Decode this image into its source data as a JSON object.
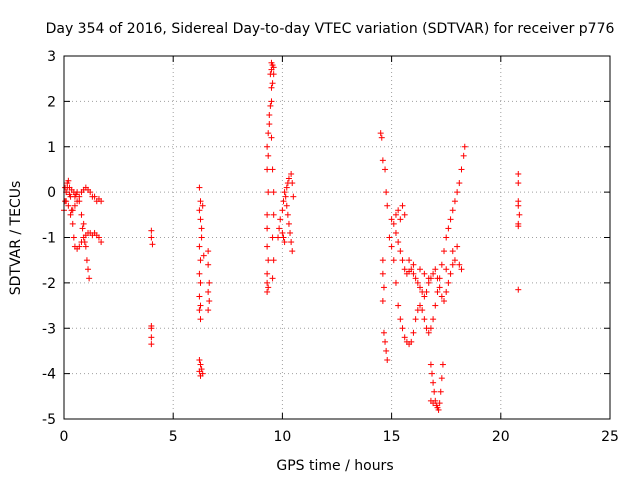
{
  "chart_data": {
    "type": "scatter",
    "title": "Day 354 of 2016, Sidereal Day-to-day VTEC variation (SDTVAR) for receiver p776",
    "xlabel": "GPS time / hours",
    "ylabel": "SDTVAR / TECUs",
    "xlim": [
      0,
      25
    ],
    "ylim": [
      -5,
      3
    ],
    "xticks": [
      0,
      5,
      10,
      15,
      20,
      25
    ],
    "yticks": [
      -5,
      -4,
      -3,
      -2,
      -1,
      0,
      1,
      2,
      3
    ],
    "xtick_labels": [
      "0",
      "5",
      "10",
      "15",
      "20",
      "25"
    ],
    "ytick_labels": [
      "-5",
      "-4",
      "-3",
      "-2",
      "-1",
      "0",
      "1",
      "2",
      "3"
    ],
    "grid": true,
    "marker": "+",
    "color": "#ff0000",
    "series": [
      {
        "name": "SDTVAR",
        "points": [
          [
            0.0,
            -0.4
          ],
          [
            0.05,
            -0.2
          ],
          [
            0.1,
            0.0
          ],
          [
            0.15,
            0.2
          ],
          [
            0.2,
            0.25
          ],
          [
            0.25,
            0.1
          ],
          [
            0.3,
            -0.1
          ],
          [
            0.35,
            -0.4
          ],
          [
            0.4,
            -0.7
          ],
          [
            0.45,
            -1.0
          ],
          [
            0.5,
            -1.2
          ],
          [
            0.6,
            -1.25
          ],
          [
            0.7,
            -1.2
          ],
          [
            0.8,
            -1.1
          ],
          [
            0.9,
            -1.0
          ],
          [
            1.0,
            -0.95
          ],
          [
            1.1,
            -0.9
          ],
          [
            1.2,
            -0.9
          ],
          [
            1.3,
            -0.95
          ],
          [
            1.4,
            -0.9
          ],
          [
            1.5,
            -0.95
          ],
          [
            1.6,
            -1.0
          ],
          [
            1.7,
            -1.1
          ],
          [
            0.1,
            -0.2
          ],
          [
            0.2,
            -0.3
          ],
          [
            0.3,
            -0.5
          ],
          [
            0.4,
            -0.4
          ],
          [
            0.5,
            -0.3
          ],
          [
            0.6,
            -0.2
          ],
          [
            0.7,
            -0.1
          ],
          [
            0.8,
            0.0
          ],
          [
            0.9,
            0.05
          ],
          [
            1.0,
            0.1
          ],
          [
            1.1,
            0.05
          ],
          [
            1.2,
            0.0
          ],
          [
            1.3,
            -0.1
          ],
          [
            1.4,
            -0.1
          ],
          [
            1.5,
            -0.2
          ],
          [
            1.6,
            -0.15
          ],
          [
            1.7,
            -0.2
          ],
          [
            0.5,
            -0.1
          ],
          [
            0.6,
            0.0
          ],
          [
            0.7,
            -0.2
          ],
          [
            0.8,
            -0.5
          ],
          [
            0.9,
            -0.7
          ],
          [
            1.0,
            -1.2
          ],
          [
            1.05,
            -1.5
          ],
          [
            1.1,
            -1.7
          ],
          [
            1.15,
            -1.9
          ],
          [
            0.85,
            -0.8
          ],
          [
            0.95,
            -1.1
          ],
          [
            0.05,
            0.1
          ],
          [
            0.15,
            0.1
          ],
          [
            0.25,
            -0.05
          ],
          [
            0.35,
            0.05
          ],
          [
            0.45,
            0.0
          ],
          [
            0.55,
            -0.05
          ],
          [
            4.0,
            -0.85
          ],
          [
            4.0,
            -1.0
          ],
          [
            4.05,
            -1.15
          ],
          [
            4.0,
            -2.95
          ],
          [
            4.0,
            -3.0
          ],
          [
            4.0,
            -3.2
          ],
          [
            4.0,
            -3.35
          ],
          [
            6.2,
            0.1
          ],
          [
            6.25,
            -0.2
          ],
          [
            6.2,
            -0.4
          ],
          [
            6.25,
            -0.6
          ],
          [
            6.3,
            -0.8
          ],
          [
            6.2,
            -1.2
          ],
          [
            6.25,
            -1.5
          ],
          [
            6.2,
            -1.8
          ],
          [
            6.25,
            -2.0
          ],
          [
            6.2,
            -2.3
          ],
          [
            6.25,
            -2.5
          ],
          [
            6.2,
            -2.6
          ],
          [
            6.25,
            -2.8
          ],
          [
            6.3,
            -1.0
          ],
          [
            6.35,
            -0.3
          ],
          [
            6.4,
            -1.4
          ],
          [
            6.2,
            -3.7
          ],
          [
            6.25,
            -3.8
          ],
          [
            6.3,
            -3.9
          ],
          [
            6.35,
            -4.0
          ],
          [
            6.2,
            -3.95
          ],
          [
            6.25,
            -4.05
          ],
          [
            6.6,
            -1.3
          ],
          [
            6.6,
            -1.6
          ],
          [
            6.65,
            -2.0
          ],
          [
            6.6,
            -2.2
          ],
          [
            6.65,
            -2.4
          ],
          [
            6.6,
            -2.6
          ],
          [
            9.3,
            -0.8
          ],
          [
            9.3,
            -1.2
          ],
          [
            9.3,
            -1.8
          ],
          [
            9.3,
            -2.0
          ],
          [
            9.35,
            -2.1
          ],
          [
            9.3,
            -2.2
          ],
          [
            9.35,
            -1.5
          ],
          [
            9.3,
            -0.5
          ],
          [
            9.35,
            0.0
          ],
          [
            9.3,
            0.5
          ],
          [
            9.35,
            0.8
          ],
          [
            9.3,
            1.0
          ],
          [
            9.35,
            1.3
          ],
          [
            9.4,
            1.5
          ],
          [
            9.4,
            1.7
          ],
          [
            9.45,
            1.9
          ],
          [
            9.5,
            2.0
          ],
          [
            9.5,
            2.3
          ],
          [
            9.45,
            2.6
          ],
          [
            9.5,
            2.7
          ],
          [
            9.55,
            2.8
          ],
          [
            9.5,
            2.85
          ],
          [
            9.6,
            2.75
          ],
          [
            9.6,
            2.6
          ],
          [
            9.55,
            2.4
          ],
          [
            9.5,
            1.2
          ],
          [
            9.55,
            0.5
          ],
          [
            9.6,
            0.0
          ],
          [
            9.6,
            -0.5
          ],
          [
            9.55,
            -1.0
          ],
          [
            9.6,
            -1.5
          ],
          [
            9.55,
            -1.9
          ],
          [
            9.8,
            -1.0
          ],
          [
            9.85,
            -0.8
          ],
          [
            9.9,
            -0.6
          ],
          [
            10.0,
            -0.4
          ],
          [
            10.05,
            -0.2
          ],
          [
            10.1,
            0.0
          ],
          [
            10.15,
            -0.1
          ],
          [
            10.2,
            -0.3
          ],
          [
            10.25,
            -0.5
          ],
          [
            10.3,
            -0.7
          ],
          [
            10.35,
            -0.9
          ],
          [
            10.4,
            -1.1
          ],
          [
            10.45,
            -1.3
          ],
          [
            10.0,
            -0.9
          ],
          [
            10.05,
            -1.0
          ],
          [
            10.1,
            -1.1
          ],
          [
            10.2,
            0.1
          ],
          [
            10.25,
            0.2
          ],
          [
            10.3,
            0.3
          ],
          [
            10.4,
            0.4
          ],
          [
            10.45,
            0.2
          ],
          [
            10.5,
            -0.1
          ],
          [
            14.5,
            1.3
          ],
          [
            14.55,
            1.2
          ],
          [
            14.6,
            0.7
          ],
          [
            14.7,
            0.5
          ],
          [
            14.75,
            0.0
          ],
          [
            14.8,
            -0.3
          ],
          [
            14.6,
            -1.5
          ],
          [
            14.6,
            -1.8
          ],
          [
            14.65,
            -2.1
          ],
          [
            14.6,
            -2.4
          ],
          [
            14.65,
            -3.1
          ],
          [
            14.7,
            -3.3
          ],
          [
            14.75,
            -3.5
          ],
          [
            14.8,
            -3.7
          ],
          [
            14.9,
            -1.0
          ],
          [
            15.0,
            -1.2
          ],
          [
            15.1,
            -1.5
          ],
          [
            15.2,
            -2.0
          ],
          [
            15.3,
            -2.5
          ],
          [
            15.4,
            -2.8
          ],
          [
            15.5,
            -3.0
          ],
          [
            15.6,
            -3.2
          ],
          [
            15.7,
            -3.3
          ],
          [
            15.8,
            -3.35
          ],
          [
            15.9,
            -3.3
          ],
          [
            16.0,
            -3.1
          ],
          [
            16.1,
            -2.8
          ],
          [
            16.2,
            -2.6
          ],
          [
            16.3,
            -2.5
          ],
          [
            16.4,
            -2.6
          ],
          [
            16.5,
            -2.8
          ],
          [
            16.6,
            -3.0
          ],
          [
            16.7,
            -3.1
          ],
          [
            16.8,
            -3.0
          ],
          [
            16.9,
            -2.8
          ],
          [
            17.0,
            -2.5
          ],
          [
            17.1,
            -2.2
          ],
          [
            17.2,
            -1.9
          ],
          [
            17.3,
            -1.6
          ],
          [
            17.4,
            -1.3
          ],
          [
            17.5,
            -1.0
          ],
          [
            17.6,
            -0.8
          ],
          [
            17.7,
            -0.6
          ],
          [
            17.8,
            -0.4
          ],
          [
            17.9,
            -0.2
          ],
          [
            18.0,
            0.0
          ],
          [
            18.1,
            0.2
          ],
          [
            18.2,
            0.5
          ],
          [
            18.3,
            0.8
          ],
          [
            18.35,
            1.0
          ],
          [
            15.0,
            -0.6
          ],
          [
            15.1,
            -0.7
          ],
          [
            15.2,
            -0.9
          ],
          [
            15.3,
            -1.1
          ],
          [
            15.4,
            -1.3
          ],
          [
            15.5,
            -1.5
          ],
          [
            15.6,
            -1.7
          ],
          [
            15.7,
            -1.8
          ],
          [
            15.8,
            -1.75
          ],
          [
            15.9,
            -1.7
          ],
          [
            16.0,
            -1.8
          ],
          [
            16.1,
            -1.9
          ],
          [
            16.2,
            -2.0
          ],
          [
            16.3,
            -2.1
          ],
          [
            16.4,
            -2.2
          ],
          [
            16.5,
            -2.3
          ],
          [
            16.6,
            -2.2
          ],
          [
            16.7,
            -2.0
          ],
          [
            16.8,
            -1.9
          ],
          [
            16.9,
            -1.8
          ],
          [
            17.0,
            -1.7
          ],
          [
            17.1,
            -1.9
          ],
          [
            17.2,
            -2.1
          ],
          [
            17.3,
            -2.3
          ],
          [
            17.4,
            -2.4
          ],
          [
            17.5,
            -2.2
          ],
          [
            17.6,
            -2.0
          ],
          [
            17.7,
            -1.8
          ],
          [
            17.8,
            -1.6
          ],
          [
            17.9,
            -1.5
          ],
          [
            15.2,
            -0.5
          ],
          [
            15.3,
            -0.4
          ],
          [
            15.4,
            -0.6
          ],
          [
            15.5,
            -0.3
          ],
          [
            15.6,
            -0.5
          ],
          [
            15.8,
            -1.5
          ],
          [
            16.0,
            -1.6
          ],
          [
            16.3,
            -1.7
          ],
          [
            16.5,
            -1.8
          ],
          [
            16.7,
            -1.9
          ],
          [
            17.5,
            -1.7
          ],
          [
            17.8,
            -1.3
          ],
          [
            18.0,
            -1.2
          ],
          [
            18.1,
            -1.6
          ],
          [
            18.2,
            -1.7
          ],
          [
            16.8,
            -3.8
          ],
          [
            16.85,
            -4.0
          ],
          [
            16.9,
            -4.2
          ],
          [
            16.95,
            -4.4
          ],
          [
            17.0,
            -4.6
          ],
          [
            17.05,
            -4.7
          ],
          [
            17.1,
            -4.75
          ],
          [
            17.15,
            -4.8
          ],
          [
            17.2,
            -4.65
          ],
          [
            17.25,
            -4.4
          ],
          [
            17.3,
            -4.1
          ],
          [
            17.35,
            -3.8
          ],
          [
            16.8,
            -4.6
          ],
          [
            16.9,
            -4.65
          ],
          [
            20.8,
            0.4
          ],
          [
            20.8,
            0.2
          ],
          [
            20.8,
            -0.2
          ],
          [
            20.8,
            -0.3
          ],
          [
            20.85,
            -0.5
          ],
          [
            20.8,
            -0.7
          ],
          [
            20.8,
            -0.75
          ],
          [
            20.8,
            -2.15
          ]
        ]
      }
    ]
  }
}
